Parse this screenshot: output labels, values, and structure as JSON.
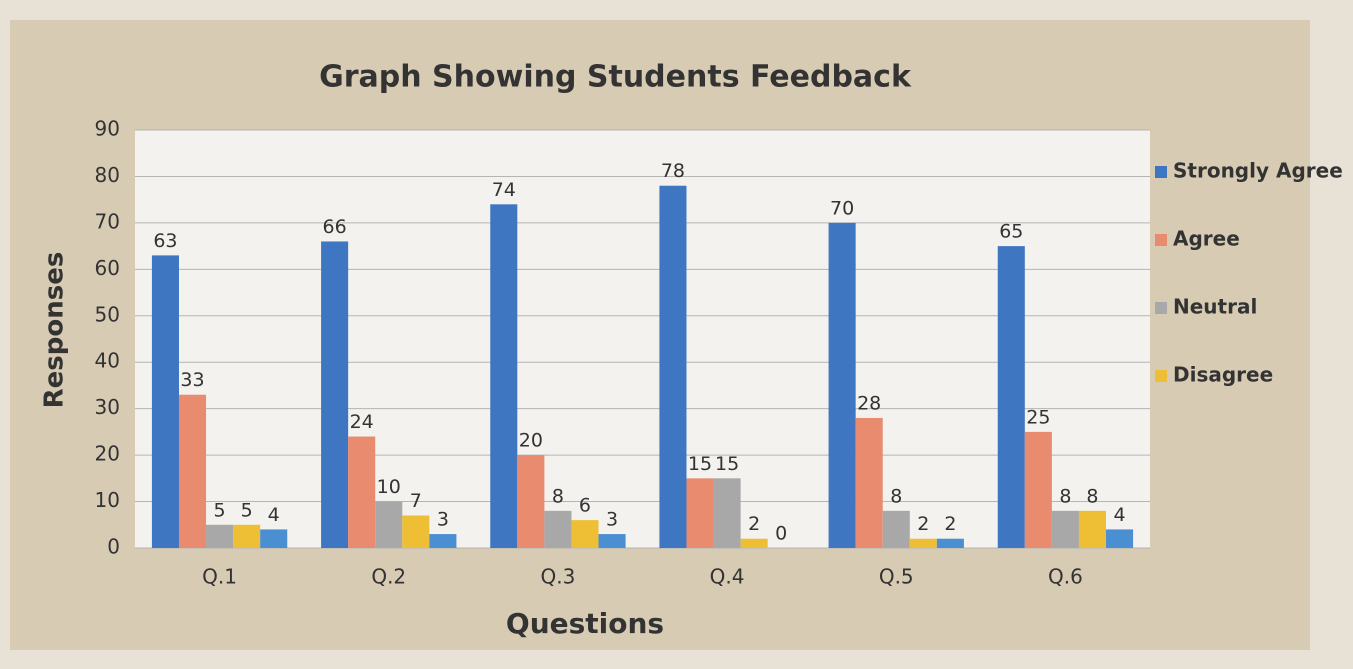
{
  "chart_data": {
    "type": "bar",
    "title": "Graph Showing Students Feedback",
    "x_label": "Questions",
    "y_label": "Responses",
    "categories": [
      "Q.1",
      "Q.2",
      "Q.3",
      "Q.4",
      "Q.5",
      "Q.6"
    ],
    "series": [
      {
        "name": "Strongly Agree",
        "color": "#3f76c2",
        "values": [
          63,
          66,
          74,
          78,
          70,
          65
        ]
      },
      {
        "name": "Agree",
        "color": "#e98b6f",
        "values": [
          33,
          24,
          20,
          15,
          28,
          25
        ]
      },
      {
        "name": "Neutral",
        "color": "#a8a8a8",
        "values": [
          5,
          10,
          8,
          15,
          8,
          8
        ]
      },
      {
        "name": "Disagree",
        "color": "#eebf35",
        "values": [
          5,
          7,
          6,
          2,
          2,
          8
        ]
      },
      {
        "color": "#4b8fd3",
        "values": [
          4,
          3,
          3,
          0,
          2,
          4
        ]
      }
    ],
    "ylim": [
      0,
      90
    ],
    "yticks": [
      0,
      10,
      20,
      30,
      40,
      50,
      60,
      70,
      80,
      90
    ],
    "grid": true,
    "legend": "right"
  }
}
